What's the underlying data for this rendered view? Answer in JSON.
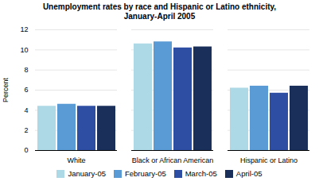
{
  "chart_data": {
    "type": "bar",
    "title": "Unemployment rates by race and Hispanic or Latino ethnicity,\nJanuary-April 2005",
    "ylabel": "Percent",
    "categories": [
      "White",
      "Black or African American",
      "Hispanic or Latino"
    ],
    "series": [
      {
        "name": "January-05",
        "color": "#add8e6",
        "values": [
          4.4,
          10.6,
          6.2
        ]
      },
      {
        "name": "February-05",
        "color": "#5b9bd5",
        "values": [
          4.6,
          10.8,
          6.4
        ]
      },
      {
        "name": "March-05",
        "color": "#2e4ea3",
        "values": [
          4.4,
          10.2,
          5.7
        ]
      },
      {
        "name": "April-05",
        "color": "#1a2f5a",
        "values": [
          4.4,
          10.3,
          6.4
        ]
      }
    ],
    "ylim": [
      0,
      12
    ],
    "yticks": [
      0,
      2,
      4,
      6,
      8,
      10,
      12
    ],
    "grid": true,
    "legend": "bottom"
  }
}
